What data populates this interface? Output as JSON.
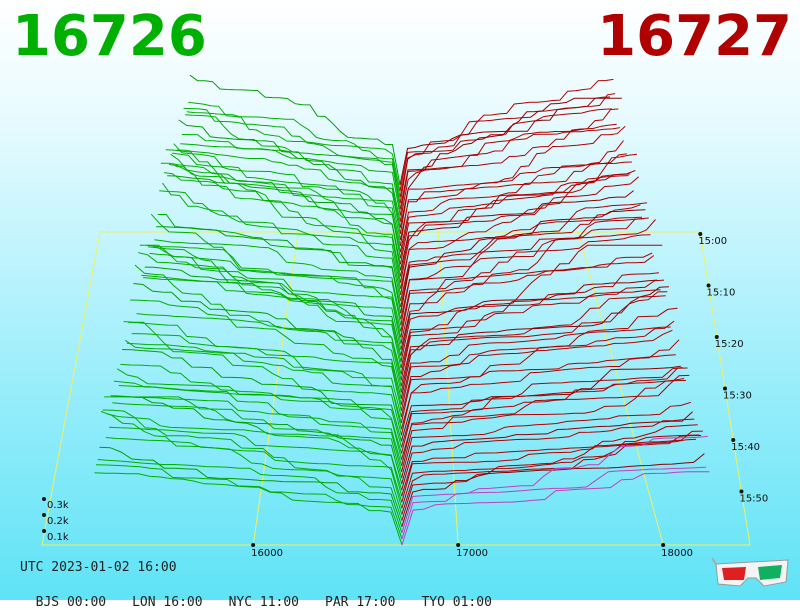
{
  "header": {
    "bid_price": "16726",
    "ask_price": "16727",
    "bid_color": "#00b000",
    "ask_color": "#b00000"
  },
  "info": {
    "utc": "UTC 2023-01-02 16:00",
    "zones": [
      "BJS 00:00",
      "LON 16:00",
      "NYC 11:00",
      "PAR 17:00",
      "TYO 01:00"
    ]
  },
  "icons": {
    "glasses": "3d-glasses-icon"
  },
  "chart_data": {
    "type": "area",
    "x_ticks": [
      {
        "label": "16000",
        "value": 16000
      },
      {
        "label": "17000",
        "value": 17000
      },
      {
        "label": "18000",
        "value": 18000
      }
    ],
    "depth_ticks": [
      {
        "label": "0.1k",
        "value": 100
      },
      {
        "label": "0.2k",
        "value": 200
      },
      {
        "label": "0.3k",
        "value": 300
      }
    ],
    "time_ticks": [
      {
        "label": "15:00",
        "value": 0
      },
      {
        "label": "15:10",
        "value": 10
      },
      {
        "label": "15:20",
        "value": 20
      },
      {
        "label": "15:30",
        "value": 30
      },
      {
        "label": "15:40",
        "value": 40
      },
      {
        "label": "15:50",
        "value": 50
      }
    ],
    "xlim": [
      15000,
      18500
    ],
    "zlim": [
      0,
      60
    ],
    "ylim": [
      0,
      420
    ],
    "mid_price": 16726,
    "series": [
      {
        "side": "bid",
        "color": "#00b000",
        "levels": 60
      },
      {
        "side": "ask",
        "color": "#b00000",
        "levels": 60
      }
    ]
  }
}
